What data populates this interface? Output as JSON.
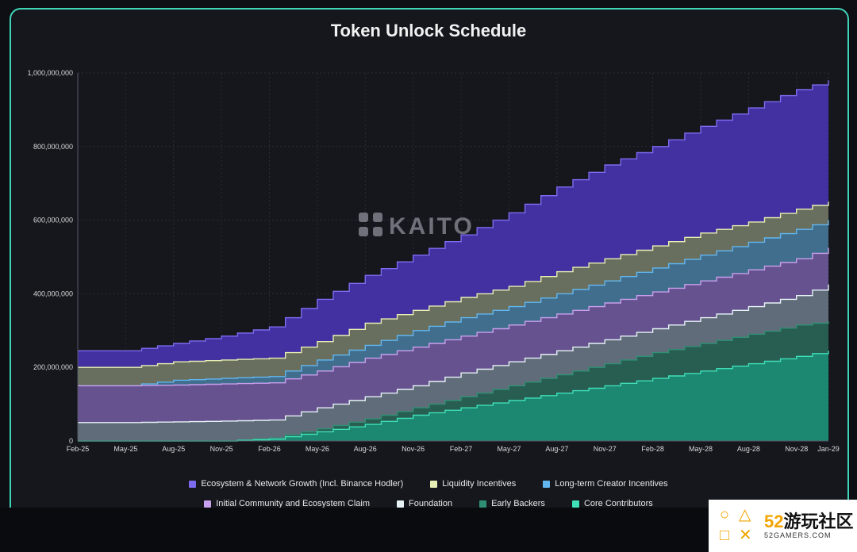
{
  "chart_data": {
    "type": "area",
    "stacked": true,
    "title": "Token Unlock Schedule",
    "watermark": "KAITO",
    "x_tick_labels": [
      "Feb-25",
      "May-25",
      "Aug-25",
      "Nov-25",
      "Feb-26",
      "May-26",
      "Aug-26",
      "Nov-26",
      "Feb-27",
      "May-27",
      "Aug-27",
      "Nov-27",
      "Feb-28",
      "May-28",
      "Aug-28",
      "Nov-28",
      "Jan-29"
    ],
    "x_months_range": [
      0,
      47
    ],
    "ylim": [
      0,
      1000000000
    ],
    "y_tick_values": [
      0,
      200000000,
      400000000,
      600000000,
      800000000,
      1000000000
    ],
    "y_tick_labels": [
      "0",
      "200,000,000",
      "400,000,000",
      "600,000,000",
      "800,000,000",
      "1,000,000,000"
    ],
    "grid": true,
    "legend_position": "bottom",
    "cumulative_top_at_ticks": {
      "x": [
        "Feb-25",
        "May-25",
        "Aug-25",
        "Nov-25",
        "Feb-26",
        "May-26",
        "Aug-26",
        "Nov-26",
        "Feb-27",
        "May-27",
        "Aug-27",
        "Nov-27",
        "Feb-28",
        "May-28",
        "Aug-28",
        "Nov-28",
        "Jan-29"
      ],
      "Core Contributors": [
        0,
        0,
        0,
        0,
        5000000,
        25000000,
        45000000,
        70000000,
        90000000,
        110000000,
        130000000,
        150000000,
        170000000,
        190000000,
        210000000,
        230000000,
        245000000
      ],
      "Early Backers": [
        0,
        0,
        0,
        0,
        8000000,
        33000000,
        60000000,
        90000000,
        120000000,
        150000000,
        180000000,
        210000000,
        240000000,
        265000000,
        290000000,
        315000000,
        325000000
      ],
      "Foundation": [
        50000000,
        50000000,
        52000000,
        54000000,
        57000000,
        90000000,
        120000000,
        150000000,
        185000000,
        215000000,
        245000000,
        275000000,
        305000000,
        335000000,
        365000000,
        395000000,
        425000000
      ],
      "Initial Community and Ecosystem Claim": [
        150000000,
        150000000,
        152000000,
        155000000,
        158000000,
        190000000,
        225000000,
        255000000,
        285000000,
        315000000,
        345000000,
        375000000,
        405000000,
        435000000,
        465000000,
        495000000,
        525000000
      ],
      "Long-term Creator Incentives": [
        150000000,
        150000000,
        165000000,
        170000000,
        175000000,
        220000000,
        260000000,
        300000000,
        335000000,
        365000000,
        400000000,
        435000000,
        470000000,
        505000000,
        540000000,
        575000000,
        600000000
      ],
      "Liquidity Incentives": [
        200000000,
        200000000,
        215000000,
        220000000,
        225000000,
        270000000,
        320000000,
        355000000,
        390000000,
        420000000,
        460000000,
        495000000,
        530000000,
        565000000,
        595000000,
        630000000,
        650000000
      ],
      "Ecosystem & Network Growth (Incl. Binance Hodler)": [
        245000000,
        245000000,
        265000000,
        285000000,
        310000000,
        385000000,
        450000000,
        505000000,
        560000000,
        620000000,
        690000000,
        750000000,
        800000000,
        855000000,
        905000000,
        955000000,
        980000000
      ]
    },
    "series": [
      {
        "name": "Ecosystem & Network Growth (Incl. Binance Hodler)",
        "color": "#4b35b8",
        "line": "#7d6cf0"
      },
      {
        "name": "Liquidity Incentives",
        "color": "#6f7a52",
        "line": "#e8efb4"
      },
      {
        "name": "Long-term Creator Incentives",
        "color": "#3b6f95",
        "line": "#62b6ef"
      },
      {
        "name": "Initial Community and Ecosystem Claim",
        "color": "#6d4d8f",
        "line": "#c9a0ee"
      },
      {
        "name": "Foundation",
        "color": "#5f7176",
        "line": "#e6f3f6"
      },
      {
        "name": "Early Backers",
        "color": "#1f5a4a",
        "line": "#2f8f74"
      },
      {
        "name": "Core Contributors",
        "color": "#1a8f78",
        "line": "#3fe0b8"
      }
    ]
  },
  "watermark_badge": {
    "num": "52",
    "cn": "游玩社区",
    "sub": "52GAMERS.COM"
  }
}
